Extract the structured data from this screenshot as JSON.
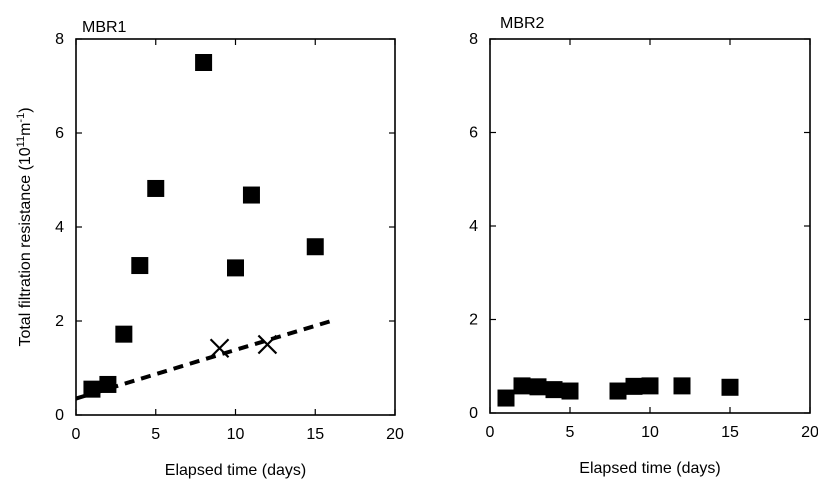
{
  "chart_data": [
    {
      "type": "scatter",
      "title": "MBR1",
      "xlabel": "Elapsed time (days)",
      "ylabel": "Total filtration resistance (10¹¹m⁻¹)",
      "xlim": [
        0,
        20
      ],
      "ylim": [
        0,
        8
      ],
      "xticks": [
        0,
        5,
        10,
        15,
        20
      ],
      "yticks": [
        0,
        2,
        4,
        6,
        8
      ],
      "grid": false,
      "series": [
        {
          "marker": "square",
          "color": "#000000",
          "points": [
            [
              1,
              0.55
            ],
            [
              2,
              0.65
            ],
            [
              3,
              1.72
            ],
            [
              4,
              3.18
            ],
            [
              5,
              4.82
            ],
            [
              8,
              7.5
            ],
            [
              10,
              3.13
            ],
            [
              11,
              4.68
            ],
            [
              15,
              3.58
            ]
          ]
        },
        {
          "marker": "x",
          "color": "#000000",
          "points": [
            [
              9,
              1.42
            ],
            [
              12,
              1.5
            ]
          ]
        },
        {
          "style": "dashed-line",
          "color": "#000000",
          "points": [
            [
              0,
              0.35
            ],
            [
              8,
              1.18
            ],
            [
              16,
              2.0
            ]
          ]
        }
      ]
    },
    {
      "type": "scatter",
      "title": "MBR2",
      "xlabel": "Elapsed time (days)",
      "ylabel": "",
      "xlim": [
        0,
        20
      ],
      "ylim": [
        0,
        8
      ],
      "xticks": [
        0,
        5,
        10,
        15,
        20
      ],
      "yticks": [
        0,
        2,
        4,
        6,
        8
      ],
      "grid": false,
      "series": [
        {
          "marker": "square",
          "color": "#000000",
          "points": [
            [
              1,
              0.32
            ],
            [
              2,
              0.58
            ],
            [
              3,
              0.56
            ],
            [
              4,
              0.5
            ],
            [
              5,
              0.47
            ],
            [
              8,
              0.47
            ],
            [
              9,
              0.57
            ],
            [
              10,
              0.58
            ],
            [
              12,
              0.58
            ],
            [
              15,
              0.55
            ]
          ]
        }
      ]
    }
  ]
}
